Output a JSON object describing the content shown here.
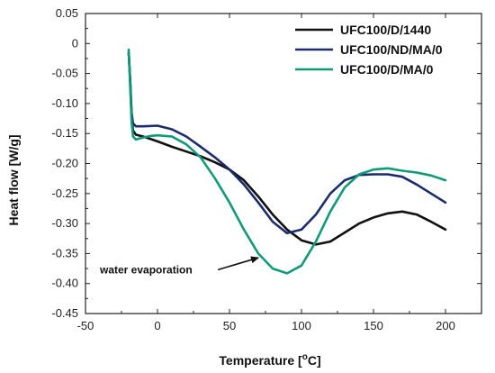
{
  "chart_data": {
    "type": "line",
    "title": "",
    "xlabel": "Temperature [",
    "xlabel_sup": "o",
    "xlabel_suffix": "C]",
    "ylabel": "Heat flow [W/g]",
    "xlim": [
      -50,
      225
    ],
    "ylim": [
      -0.45,
      0.05
    ],
    "x_ticks": [
      -50,
      0,
      50,
      100,
      150,
      200
    ],
    "y_ticks": [
      0.05,
      0,
      -0.05,
      -0.1,
      -0.15,
      -0.2,
      -0.25,
      -0.3,
      -0.35,
      -0.4,
      -0.45
    ],
    "x_tick_labels": [
      "-50",
      "0",
      "50",
      "100",
      "150",
      "200"
    ],
    "y_tick_labels": [
      "0.05",
      "0",
      "-0.05",
      "-0.10",
      "-0.15",
      "-0.20",
      "-0.25",
      "-0.30",
      "-0.35",
      "-0.40",
      "-0.45"
    ],
    "legend_position": "top-right",
    "series": [
      {
        "name": "UFC100/D/1440",
        "color": "#111111",
        "points": [
          [
            -20,
            -0.015
          ],
          [
            -19,
            -0.06
          ],
          [
            -18,
            -0.12
          ],
          [
            -17,
            -0.145
          ],
          [
            -15,
            -0.152
          ],
          [
            -10,
            -0.155
          ],
          [
            0,
            -0.163
          ],
          [
            10,
            -0.172
          ],
          [
            20,
            -0.18
          ],
          [
            30,
            -0.188
          ],
          [
            40,
            -0.198
          ],
          [
            50,
            -0.21
          ],
          [
            60,
            -0.228
          ],
          [
            70,
            -0.255
          ],
          [
            80,
            -0.285
          ],
          [
            90,
            -0.31
          ],
          [
            100,
            -0.328
          ],
          [
            110,
            -0.335
          ],
          [
            120,
            -0.33
          ],
          [
            130,
            -0.315
          ],
          [
            140,
            -0.3
          ],
          [
            150,
            -0.29
          ],
          [
            160,
            -0.283
          ],
          [
            170,
            -0.28
          ],
          [
            180,
            -0.285
          ],
          [
            190,
            -0.297
          ],
          [
            200,
            -0.31
          ]
        ]
      },
      {
        "name": "UFC100/ND/MA/0",
        "color": "#1a2c6b",
        "points": [
          [
            -20,
            -0.015
          ],
          [
            -19,
            -0.06
          ],
          [
            -18,
            -0.115
          ],
          [
            -17,
            -0.133
          ],
          [
            -15,
            -0.138
          ],
          [
            -10,
            -0.138
          ],
          [
            0,
            -0.137
          ],
          [
            10,
            -0.143
          ],
          [
            20,
            -0.155
          ],
          [
            30,
            -0.172
          ],
          [
            40,
            -0.19
          ],
          [
            50,
            -0.21
          ],
          [
            60,
            -0.235
          ],
          [
            70,
            -0.265
          ],
          [
            80,
            -0.297
          ],
          [
            90,
            -0.316
          ],
          [
            100,
            -0.31
          ],
          [
            110,
            -0.285
          ],
          [
            120,
            -0.25
          ],
          [
            130,
            -0.228
          ],
          [
            140,
            -0.219
          ],
          [
            150,
            -0.218
          ],
          [
            160,
            -0.218
          ],
          [
            170,
            -0.222
          ],
          [
            180,
            -0.235
          ],
          [
            190,
            -0.25
          ],
          [
            200,
            -0.265
          ]
        ]
      },
      {
        "name": "UFC100/D/MA/0",
        "color": "#0f9a7a",
        "points": [
          [
            -20,
            -0.01
          ],
          [
            -19,
            -0.07
          ],
          [
            -18,
            -0.13
          ],
          [
            -17,
            -0.155
          ],
          [
            -15,
            -0.16
          ],
          [
            -12,
            -0.158
          ],
          [
            -5,
            -0.154
          ],
          [
            0,
            -0.153
          ],
          [
            10,
            -0.155
          ],
          [
            20,
            -0.168
          ],
          [
            30,
            -0.19
          ],
          [
            40,
            -0.225
          ],
          [
            50,
            -0.265
          ],
          [
            60,
            -0.31
          ],
          [
            70,
            -0.35
          ],
          [
            80,
            -0.375
          ],
          [
            90,
            -0.383
          ],
          [
            100,
            -0.37
          ],
          [
            110,
            -0.33
          ],
          [
            120,
            -0.28
          ],
          [
            130,
            -0.24
          ],
          [
            140,
            -0.218
          ],
          [
            150,
            -0.21
          ],
          [
            160,
            -0.208
          ],
          [
            170,
            -0.212
          ],
          [
            180,
            -0.215
          ],
          [
            190,
            -0.22
          ],
          [
            200,
            -0.228
          ]
        ]
      }
    ],
    "annotation": {
      "text": "water evaporation",
      "text_x": -40,
      "text_y": -0.377,
      "arrow_from": [
        42,
        -0.377
      ],
      "arrow_to": [
        70,
        -0.357
      ]
    }
  }
}
